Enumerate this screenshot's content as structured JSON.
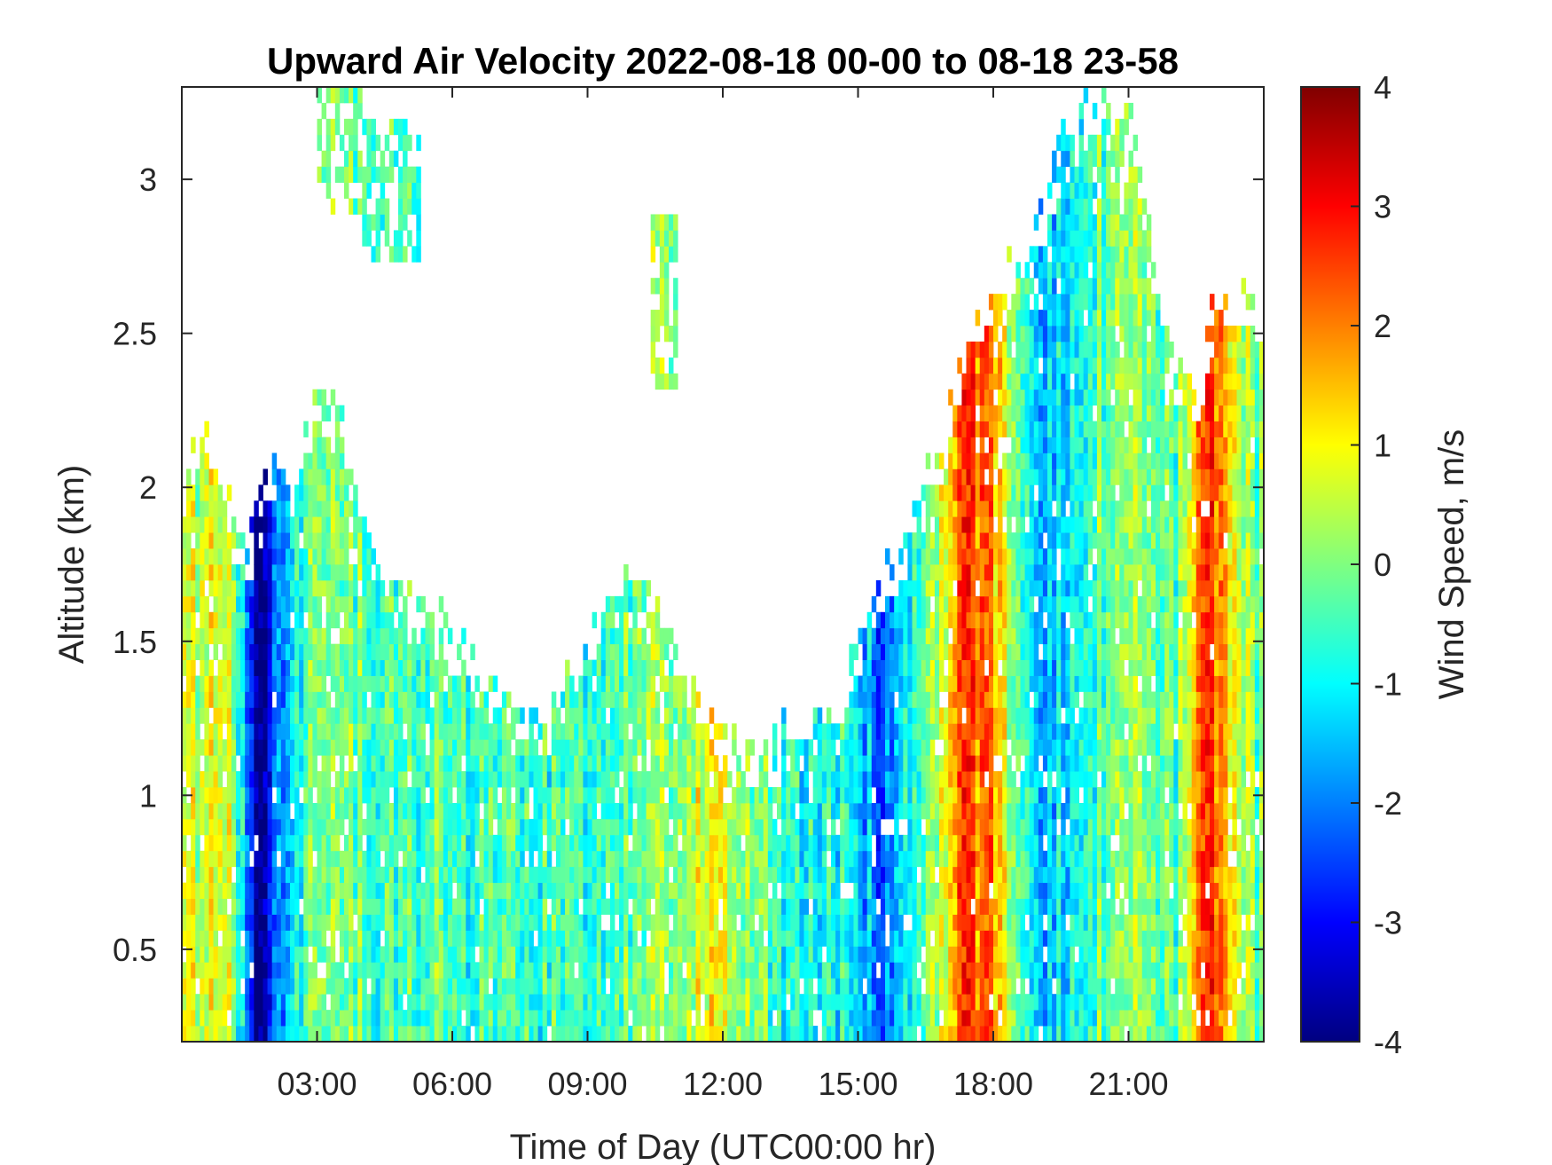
{
  "chart_data": {
    "type": "heatmap",
    "title": "Upward Air Velocity 2022-08-18 00-00 to 08-18 23-58",
    "xlabel": "Time of Day (UTC00:00 hr)",
    "ylabel": "Altitude (km)",
    "colorbar_label": "Wind Speed, m/s",
    "x_units": "hours UTC",
    "xlim": [
      0.0,
      24.0
    ],
    "ylim": [
      0.2,
      3.3
    ],
    "clim": [
      -4,
      4
    ],
    "colormap": "jet",
    "x_ticks": [
      {
        "value": 3,
        "label": "03:00"
      },
      {
        "value": 6,
        "label": "06:00"
      },
      {
        "value": 9,
        "label": "09:00"
      },
      {
        "value": 12,
        "label": "12:00"
      },
      {
        "value": 15,
        "label": "15:00"
      },
      {
        "value": 18,
        "label": "18:00"
      },
      {
        "value": 21,
        "label": "21:00"
      }
    ],
    "y_ticks": [
      {
        "value": 0.5,
        "label": "0.5"
      },
      {
        "value": 1,
        "label": "1"
      },
      {
        "value": 1.5,
        "label": "1.5"
      },
      {
        "value": 2,
        "label": "2"
      },
      {
        "value": 2.5,
        "label": "2.5"
      },
      {
        "value": 3,
        "label": "3"
      }
    ],
    "colorbar_ticks": [
      {
        "value": 4,
        "label": "4"
      },
      {
        "value": 3,
        "label": "3"
      },
      {
        "value": 2,
        "label": "2"
      },
      {
        "value": 1,
        "label": "1"
      },
      {
        "value": 0,
        "label": "0"
      },
      {
        "value": -1,
        "label": "-1"
      },
      {
        "value": -2,
        "label": "-2"
      },
      {
        "value": -3,
        "label": "-3"
      },
      {
        "value": -4,
        "label": "-4"
      }
    ],
    "echo_top_km": {
      "hours": [
        0.0,
        0.5,
        1.0,
        1.5,
        2.0,
        2.5,
        3.0,
        3.5,
        4.0,
        4.5,
        5.0,
        5.5,
        6.0,
        6.5,
        7.0,
        7.5,
        8.0,
        8.5,
        9.0,
        9.5,
        10.0,
        10.5,
        11.0,
        11.5,
        12.0,
        12.5,
        13.0,
        13.5,
        14.0,
        14.5,
        15.0,
        15.5,
        16.0,
        16.5,
        17.0,
        17.5,
        18.0,
        18.5,
        19.0,
        19.5,
        20.0,
        20.5,
        21.0,
        21.5,
        22.0,
        22.5,
        23.0,
        23.5,
        24.0
      ],
      "tops": [
        2.1,
        2.3,
        2.0,
        1.9,
        2.2,
        2.1,
        2.4,
        2.3,
        2.0,
        1.8,
        1.7,
        1.7,
        1.6,
        1.5,
        1.45,
        1.4,
        1.35,
        1.45,
        1.55,
        1.75,
        1.8,
        1.7,
        1.6,
        1.4,
        1.25,
        1.2,
        1.2,
        1.3,
        1.35,
        1.35,
        1.6,
        1.75,
        1.9,
        2.1,
        2.3,
        2.6,
        2.7,
        2.8,
        2.9,
        3.2,
        3.3,
        3.3,
        3.3,
        2.9,
        2.5,
        2.4,
        2.7,
        2.7,
        2.6
      ]
    },
    "mean_velocity_ms": {
      "hours": [
        0.0,
        1.0,
        1.7,
        2.5,
        3.0,
        6.0,
        8.0,
        10.0,
        12.0,
        13.5,
        15.0,
        15.5,
        16.5,
        17.3,
        18.0,
        19.0,
        20.0,
        21.0,
        22.0,
        22.7,
        23.5,
        24.0
      ],
      "velocity": [
        0.3,
        1.2,
        -3.8,
        -0.6,
        -0.2,
        -0.4,
        -0.7,
        -0.3,
        0.9,
        -0.8,
        -1.0,
        -2.5,
        -0.3,
        2.3,
        1.8,
        -1.5,
        -0.6,
        0.2,
        -0.5,
        2.8,
        0.2,
        -0.2
      ]
    },
    "upper_echo_patches": [
      {
        "t0": 3.0,
        "t1": 4.0,
        "z0": 2.9,
        "z1": 3.3
      },
      {
        "t0": 4.0,
        "t1": 5.3,
        "z0": 2.75,
        "z1": 3.2
      },
      {
        "t0": 10.4,
        "t1": 11.0,
        "z0": 2.3,
        "z1": 2.9
      }
    ]
  }
}
